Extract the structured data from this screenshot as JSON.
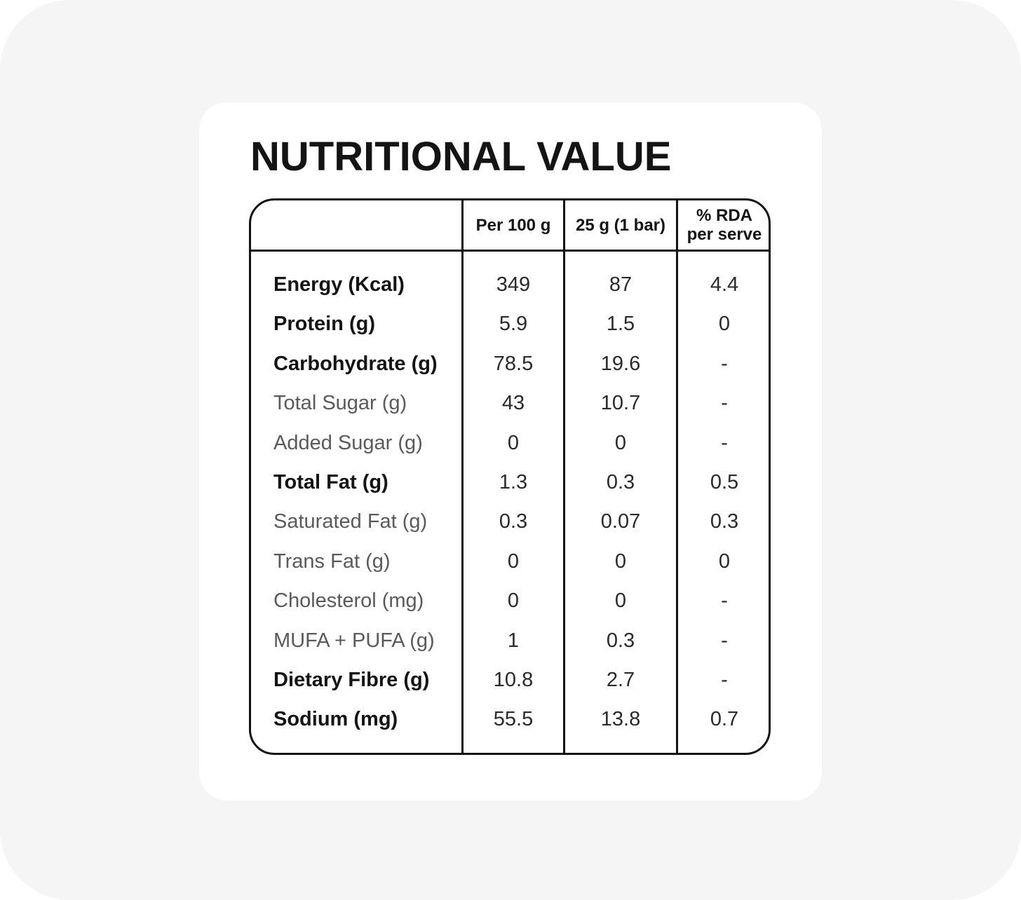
{
  "title": "NUTRITIONAL VALUE",
  "columns": [
    "Per 100 g",
    "25 g (1 bar)",
    "% RDA\nper serve"
  ],
  "rows": [
    {
      "label": "Energy (Kcal)",
      "per100": "349",
      "perBar": "87",
      "rda": "4.4",
      "bold": true
    },
    {
      "label": "Protein (g)",
      "per100": "5.9",
      "perBar": "1.5",
      "rda": "0",
      "bold": true
    },
    {
      "label": "Carbohydrate (g)",
      "per100": "78.5",
      "perBar": "19.6",
      "rda": "-",
      "bold": true
    },
    {
      "label": "Total Sugar (g)",
      "per100": "43",
      "perBar": "10.7",
      "rda": "-",
      "bold": false
    },
    {
      "label": "Added Sugar (g)",
      "per100": "0",
      "perBar": "0",
      "rda": "-",
      "bold": false
    },
    {
      "label": "Total Fat (g)",
      "per100": "1.3",
      "perBar": "0.3",
      "rda": "0.5",
      "bold": true
    },
    {
      "label": "Saturated Fat (g)",
      "per100": "0.3",
      "perBar": "0.07",
      "rda": "0.3",
      "bold": false
    },
    {
      "label": "Trans Fat (g)",
      "per100": "0",
      "perBar": "0",
      "rda": "0",
      "bold": false
    },
    {
      "label": "Cholesterol (mg)",
      "per100": "0",
      "perBar": "0",
      "rda": "-",
      "bold": false
    },
    {
      "label": "MUFA + PUFA (g)",
      "per100": "1",
      "perBar": "0.3",
      "rda": "-",
      "bold": false
    },
    {
      "label": "Dietary Fibre (g)",
      "per100": "10.8",
      "perBar": "2.7",
      "rda": "-",
      "bold": true
    },
    {
      "label": "Sodium (mg)",
      "per100": "55.5",
      "perBar": "13.8",
      "rda": "0.7",
      "bold": true
    }
  ]
}
